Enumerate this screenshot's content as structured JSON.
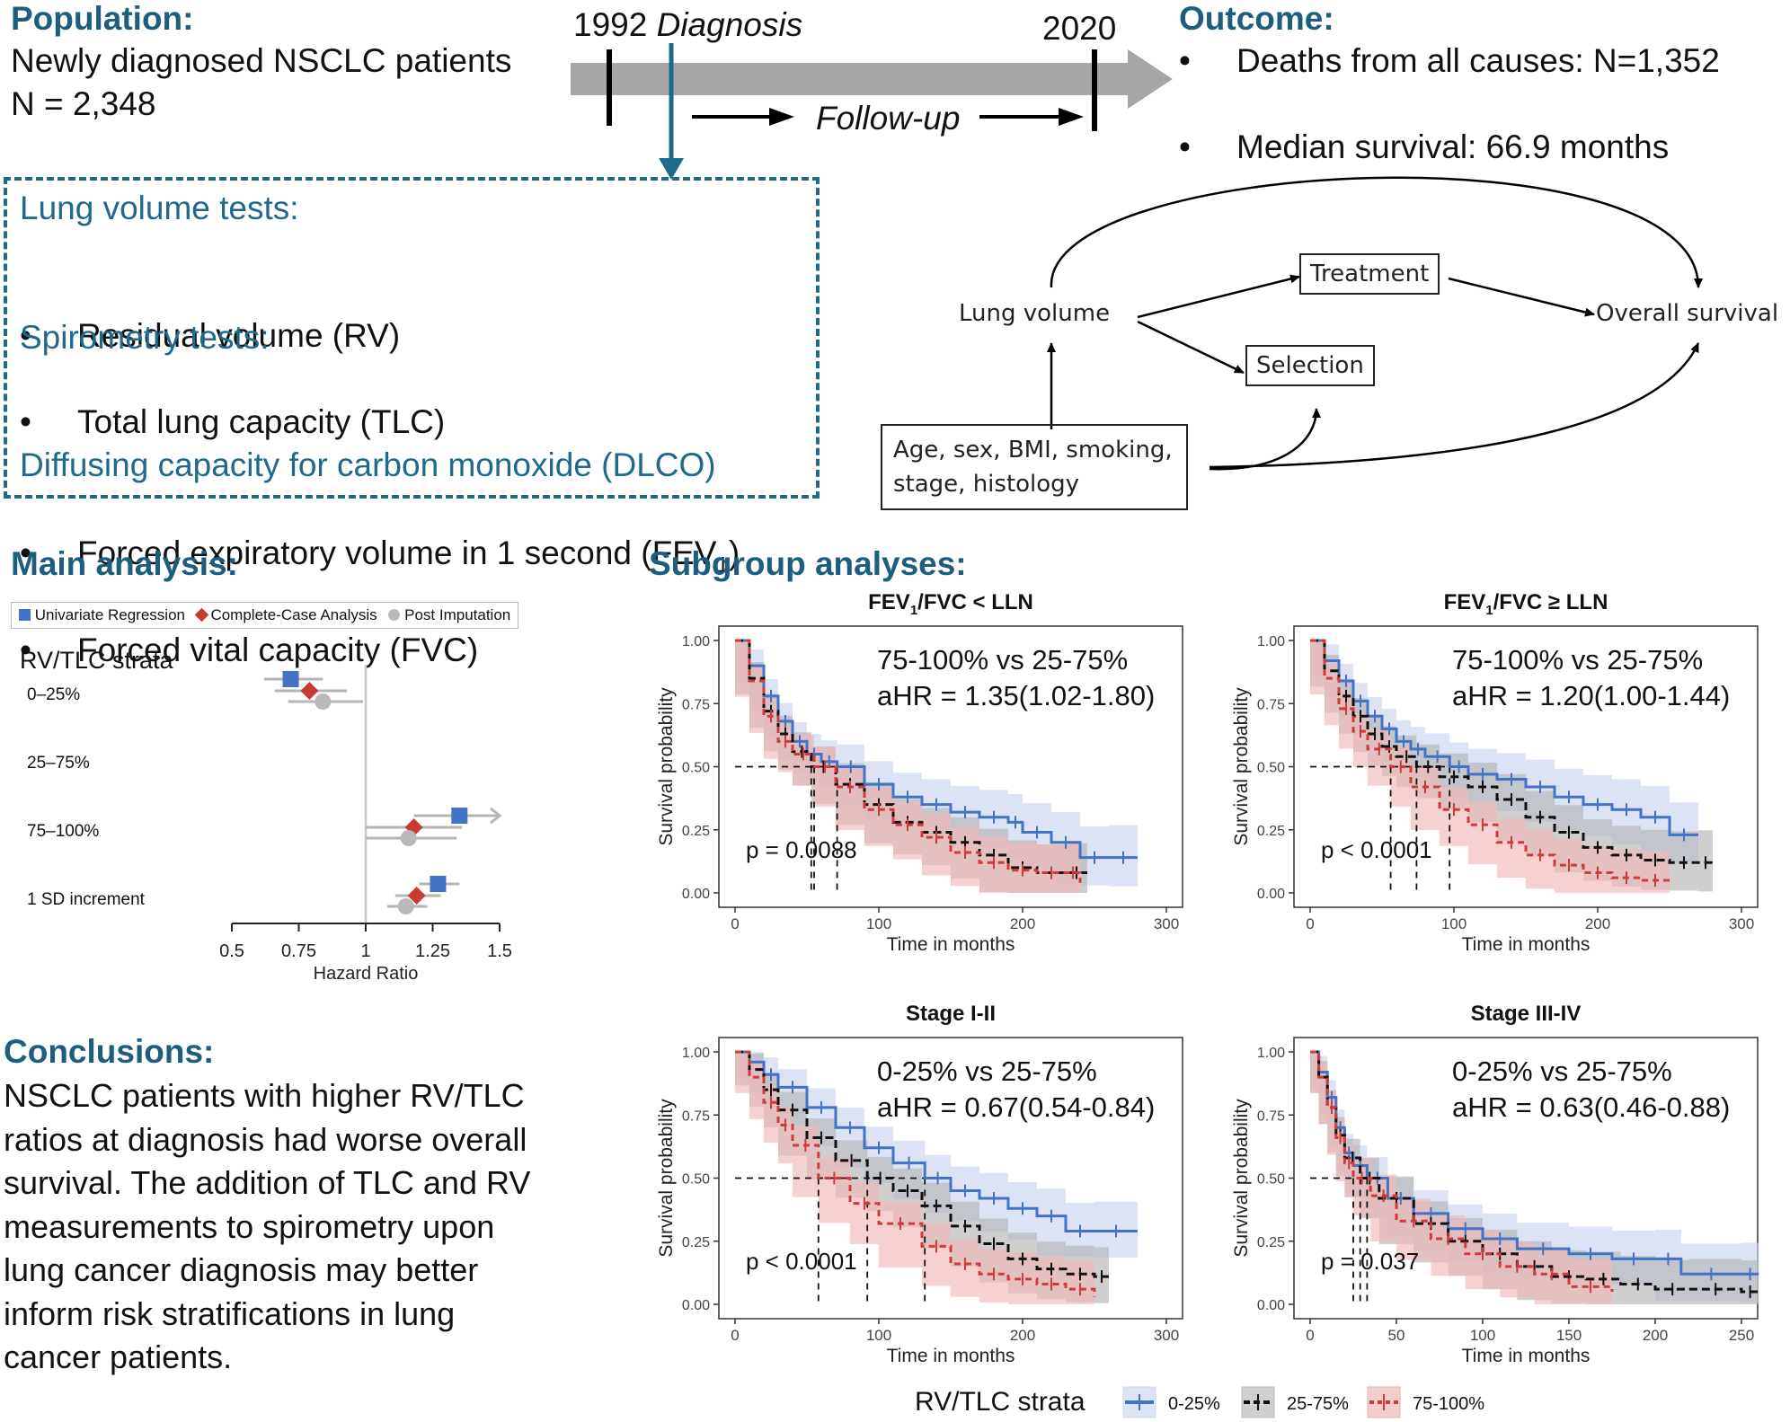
{
  "population": {
    "heading": "Population:",
    "line1": "Newly diagnosed NSCLC patients",
    "line2": "N = 2,348"
  },
  "timeline": {
    "start_year": "1992",
    "start_label": "Diagnosis",
    "end_year": "2020",
    "followup": "Follow-up"
  },
  "outcome": {
    "heading": "Outcome:",
    "items": [
      "Deaths from all causes: N=1,352",
      "Median survival: 66.9 months"
    ]
  },
  "tests": {
    "lung_volume_heading": "Lung volume tests:",
    "lung_volume_items": [
      "Residual volume (RV)",
      "Total lung capacity (TLC)"
    ],
    "spirometry_heading": "Spirometry tests:",
    "fev1_prefix": "Forced expiratory volume in 1 second (FEV",
    "fev1_sub": "1",
    "fev1_suffix": ")",
    "fvc": "Forced vital capacity (FVC)",
    "dlco": "Diffusing capacity for carbon monoxide (DLCO)"
  },
  "dag": {
    "lung_volume": "Lung volume",
    "treatment": "Treatment",
    "selection": "Selection",
    "overall_survival": "Overall survival",
    "confounders_line1": "Age, sex, BMI, smoking,",
    "confounders_line2": "stage, histology"
  },
  "main_analysis": {
    "heading": "Main analysis:",
    "legend": [
      "Univariate Regression",
      "Complete-Case Analysis",
      "Post Imputation"
    ],
    "strata_title": "RV/TLC strata",
    "xlabel": "Hazard Ratio"
  },
  "subgroup": {
    "heading": "Subgroup analyses:"
  },
  "conclusions": {
    "heading": "Conclusions:",
    "lines": [
      "NSCLC patients with higher RV/TLC",
      "ratios at diagnosis had worse overall",
      "survival. The addition of TLC and RV",
      "measurements to spirometry upon",
      "lung cancer diagnosis may better",
      "inform risk stratifications in lung",
      "cancer patients."
    ]
  },
  "km_legend": {
    "title": "RV/TLC strata",
    "items": [
      "0-25%",
      "25-75%",
      "75-100%"
    ]
  },
  "colors": {
    "blue": "#4472c4",
    "black": "#111111",
    "red": "#d03a3a",
    "heading": "#1d5d7e",
    "forest_blue": "#4472c4",
    "forest_red": "#c73b32",
    "forest_grey": "#b9b9b9"
  },
  "chart_data": [
    {
      "type": "scatter",
      "subtype": "forest",
      "title": "Main analysis",
      "xlabel": "Hazard Ratio",
      "xlim": [
        0.5,
        1.5
      ],
      "xticks": [
        0.5,
        0.75,
        1,
        1.25,
        1.5
      ],
      "xtick_labels": [
        "0.5",
        "0.75",
        "1",
        "1.25",
        "1.5"
      ],
      "reference_line": 1,
      "categories": [
        "0–25%",
        "25–75%",
        "75–100%",
        "1 SD increment"
      ],
      "series": [
        {
          "name": "Univariate Regression",
          "color": "#4472c4",
          "marker": "square",
          "points": [
            {
              "category": "0–25%",
              "hr": 0.72,
              "lo": 0.62,
              "hi": 0.84
            },
            {
              "category": "75–100%",
              "hr": 1.35,
              "lo": 1.18,
              "hi": 1.55,
              "arrow": true
            },
            {
              "category": "1 SD increment",
              "hr": 1.27,
              "lo": 1.2,
              "hi": 1.35
            }
          ]
        },
        {
          "name": "Complete-Case Analysis",
          "color": "#c73b32",
          "marker": "diamond",
          "points": [
            {
              "category": "0–25%",
              "hr": 0.79,
              "lo": 0.66,
              "hi": 0.93
            },
            {
              "category": "75–100%",
              "hr": 1.18,
              "lo": 1.0,
              "hi": 1.36
            },
            {
              "category": "1 SD increment",
              "hr": 1.19,
              "lo": 1.11,
              "hi": 1.28
            }
          ]
        },
        {
          "name": "Post Imputation",
          "color": "#b9b9b9",
          "marker": "circle",
          "points": [
            {
              "category": "0–25%",
              "hr": 0.84,
              "lo": 0.71,
              "hi": 0.99
            },
            {
              "category": "75–100%",
              "hr": 1.16,
              "lo": 1.0,
              "hi": 1.34
            },
            {
              "category": "1 SD increment",
              "hr": 1.15,
              "lo": 1.08,
              "hi": 1.23
            }
          ]
        }
      ]
    },
    {
      "type": "line",
      "subtype": "kaplan-meier",
      "title_main": "FEV",
      "title_sub": "1",
      "title_rest": "/FVC < LLN",
      "xlabel": "Time in months",
      "ylabel": "Survival probability",
      "xlim": [
        0,
        300
      ],
      "ylim": [
        0,
        1
      ],
      "xticks": [
        0,
        100,
        200,
        300
      ],
      "yticks": [
        0,
        0.25,
        0.5,
        0.75,
        1
      ],
      "ytick_labels": [
        "0.00",
        "0.25",
        "0.50",
        "0.75",
        "1.00"
      ],
      "annotation_line1": "75-100% vs 25-75%",
      "annotation_line2": "aHR = 1.35(1.02-1.80)",
      "pvalue": "p = 0.0088",
      "medians": [
        55,
        53,
        71
      ],
      "series": [
        {
          "name": "0-25%",
          "x": [
            0,
            10,
            20,
            30,
            40,
            50,
            60,
            71,
            90,
            110,
            130,
            150,
            170,
            190,
            200,
            220,
            240,
            260,
            280
          ],
          "y": [
            1,
            0.9,
            0.78,
            0.68,
            0.6,
            0.55,
            0.52,
            0.5,
            0.43,
            0.38,
            0.35,
            0.32,
            0.3,
            0.28,
            0.24,
            0.2,
            0.14,
            0.14,
            0.14
          ]
        },
        {
          "name": "25-75%",
          "x": [
            0,
            10,
            20,
            30,
            40,
            53,
            70,
            90,
            110,
            130,
            150,
            170,
            190,
            210,
            230,
            245
          ],
          "y": [
            1,
            0.85,
            0.72,
            0.63,
            0.56,
            0.5,
            0.43,
            0.35,
            0.28,
            0.24,
            0.2,
            0.15,
            0.1,
            0.08,
            0.08,
            0.08
          ]
        },
        {
          "name": "75-100%",
          "x": [
            0,
            10,
            20,
            30,
            40,
            55,
            70,
            90,
            110,
            130,
            150,
            170,
            190,
            210,
            230,
            240
          ],
          "y": [
            1,
            0.84,
            0.7,
            0.6,
            0.55,
            0.5,
            0.42,
            0.33,
            0.27,
            0.22,
            0.16,
            0.12,
            0.09,
            0.08,
            0.08,
            0.04
          ]
        }
      ]
    },
    {
      "type": "line",
      "subtype": "kaplan-meier",
      "title_main": "FEV",
      "title_sub": "1",
      "title_rest": "/FVC ≥ LLN",
      "xlabel": "Time in months",
      "ylabel": "Survival probability",
      "xlim": [
        0,
        300
      ],
      "ylim": [
        0,
        1
      ],
      "xticks": [
        0,
        100,
        200,
        300
      ],
      "yticks": [
        0,
        0.25,
        0.5,
        0.75,
        1
      ],
      "ytick_labels": [
        "0.00",
        "0.25",
        "0.50",
        "0.75",
        "1.00"
      ],
      "annotation_line1": "75-100% vs 25-75%",
      "annotation_line2": "aHR = 1.20(1.00-1.44)",
      "pvalue": "p < 0.0001",
      "medians": [
        97,
        74,
        56
      ],
      "series": [
        {
          "name": "0-25%",
          "x": [
            0,
            10,
            20,
            30,
            40,
            50,
            60,
            70,
            80,
            97,
            110,
            130,
            150,
            170,
            190,
            210,
            230,
            250,
            270
          ],
          "y": [
            1,
            0.92,
            0.84,
            0.76,
            0.7,
            0.65,
            0.6,
            0.57,
            0.54,
            0.5,
            0.47,
            0.45,
            0.42,
            0.38,
            0.35,
            0.33,
            0.3,
            0.23,
            0.23
          ]
        },
        {
          "name": "25-75%",
          "x": [
            0,
            10,
            20,
            30,
            40,
            50,
            60,
            74,
            90,
            110,
            130,
            150,
            170,
            190,
            210,
            230,
            250,
            270,
            280
          ],
          "y": [
            1,
            0.88,
            0.78,
            0.7,
            0.63,
            0.58,
            0.54,
            0.5,
            0.46,
            0.42,
            0.37,
            0.3,
            0.24,
            0.18,
            0.15,
            0.13,
            0.12,
            0.12,
            0.12
          ]
        },
        {
          "name": "75-100%",
          "x": [
            0,
            10,
            20,
            30,
            40,
            56,
            70,
            90,
            110,
            130,
            150,
            170,
            190,
            210,
            230,
            250
          ],
          "y": [
            1,
            0.85,
            0.73,
            0.64,
            0.57,
            0.5,
            0.42,
            0.33,
            0.27,
            0.2,
            0.15,
            0.11,
            0.08,
            0.06,
            0.05,
            0.05
          ]
        }
      ]
    },
    {
      "type": "line",
      "subtype": "kaplan-meier",
      "title_main": "Stage I-II",
      "title_sub": "",
      "title_rest": "",
      "xlabel": "Time in months",
      "ylabel": "Survival probability",
      "xlim": [
        0,
        300
      ],
      "ylim": [
        0,
        1
      ],
      "xticks": [
        0,
        100,
        200,
        300
      ],
      "yticks": [
        0,
        0.25,
        0.5,
        0.75,
        1
      ],
      "ytick_labels": [
        "0.00",
        "0.25",
        "0.50",
        "0.75",
        "1.00"
      ],
      "annotation_line1": "0-25% vs 25-75%",
      "annotation_line2": "aHR = 0.67(0.54-0.84)",
      "pvalue": "p < 0.0001",
      "medians": [
        132,
        92,
        58
      ],
      "series": [
        {
          "name": "0-25%",
          "x": [
            0,
            10,
            20,
            30,
            50,
            70,
            90,
            110,
            132,
            150,
            170,
            190,
            210,
            230,
            250,
            280
          ],
          "y": [
            1,
            0.96,
            0.91,
            0.86,
            0.78,
            0.7,
            0.62,
            0.56,
            0.5,
            0.45,
            0.42,
            0.38,
            0.35,
            0.29,
            0.29,
            0.29
          ]
        },
        {
          "name": "25-75%",
          "x": [
            0,
            10,
            20,
            30,
            50,
            70,
            92,
            110,
            130,
            150,
            170,
            190,
            210,
            230,
            250,
            260
          ],
          "y": [
            1,
            0.93,
            0.85,
            0.77,
            0.66,
            0.57,
            0.5,
            0.45,
            0.39,
            0.31,
            0.24,
            0.18,
            0.14,
            0.12,
            0.11,
            0.11
          ]
        },
        {
          "name": "75-100%",
          "x": [
            0,
            10,
            20,
            30,
            40,
            58,
            80,
            100,
            130,
            150,
            170,
            190,
            210,
            230,
            250
          ],
          "y": [
            1,
            0.9,
            0.8,
            0.71,
            0.63,
            0.5,
            0.4,
            0.32,
            0.23,
            0.16,
            0.12,
            0.1,
            0.08,
            0.06,
            0.03
          ]
        }
      ]
    },
    {
      "type": "line",
      "subtype": "kaplan-meier",
      "title_main": "Stage III-IV",
      "title_sub": "",
      "title_rest": "",
      "xlabel": "Time in months",
      "ylabel": "Survival probability",
      "xlim": [
        0,
        250
      ],
      "ylim": [
        0,
        1
      ],
      "xticks": [
        0,
        50,
        100,
        150,
        200,
        250
      ],
      "yticks": [
        0,
        0.25,
        0.5,
        0.75,
        1
      ],
      "ytick_labels": [
        "0.00",
        "0.25",
        "0.50",
        "0.75",
        "1.00"
      ],
      "annotation_line1": "0-25% vs 25-75%",
      "annotation_line2": "aHR = 0.63(0.46-0.88)",
      "pvalue": "p = 0.037",
      "medians": [
        33,
        29,
        25
      ],
      "series": [
        {
          "name": "0-25%",
          "x": [
            0,
            5,
            10,
            15,
            20,
            25,
            33,
            45,
            60,
            80,
            100,
            120,
            150,
            175,
            200,
            215,
            250,
            260
          ],
          "y": [
            1,
            0.92,
            0.82,
            0.7,
            0.6,
            0.55,
            0.5,
            0.42,
            0.36,
            0.3,
            0.26,
            0.22,
            0.2,
            0.18,
            0.18,
            0.12,
            0.12,
            0.12
          ]
        },
        {
          "name": "25-75%",
          "x": [
            0,
            5,
            10,
            15,
            20,
            29,
            40,
            60,
            80,
            100,
            120,
            140,
            160,
            180,
            200,
            220,
            250,
            260
          ],
          "y": [
            1,
            0.9,
            0.78,
            0.67,
            0.58,
            0.5,
            0.42,
            0.32,
            0.25,
            0.2,
            0.15,
            0.11,
            0.1,
            0.08,
            0.06,
            0.06,
            0.05,
            0.05
          ]
        },
        {
          "name": "75-100%",
          "x": [
            0,
            5,
            10,
            15,
            20,
            25,
            35,
            50,
            70,
            90,
            110,
            130,
            150,
            175
          ],
          "y": [
            1,
            0.9,
            0.78,
            0.66,
            0.56,
            0.5,
            0.43,
            0.33,
            0.26,
            0.2,
            0.15,
            0.12,
            0.07,
            0.05
          ]
        }
      ]
    }
  ]
}
